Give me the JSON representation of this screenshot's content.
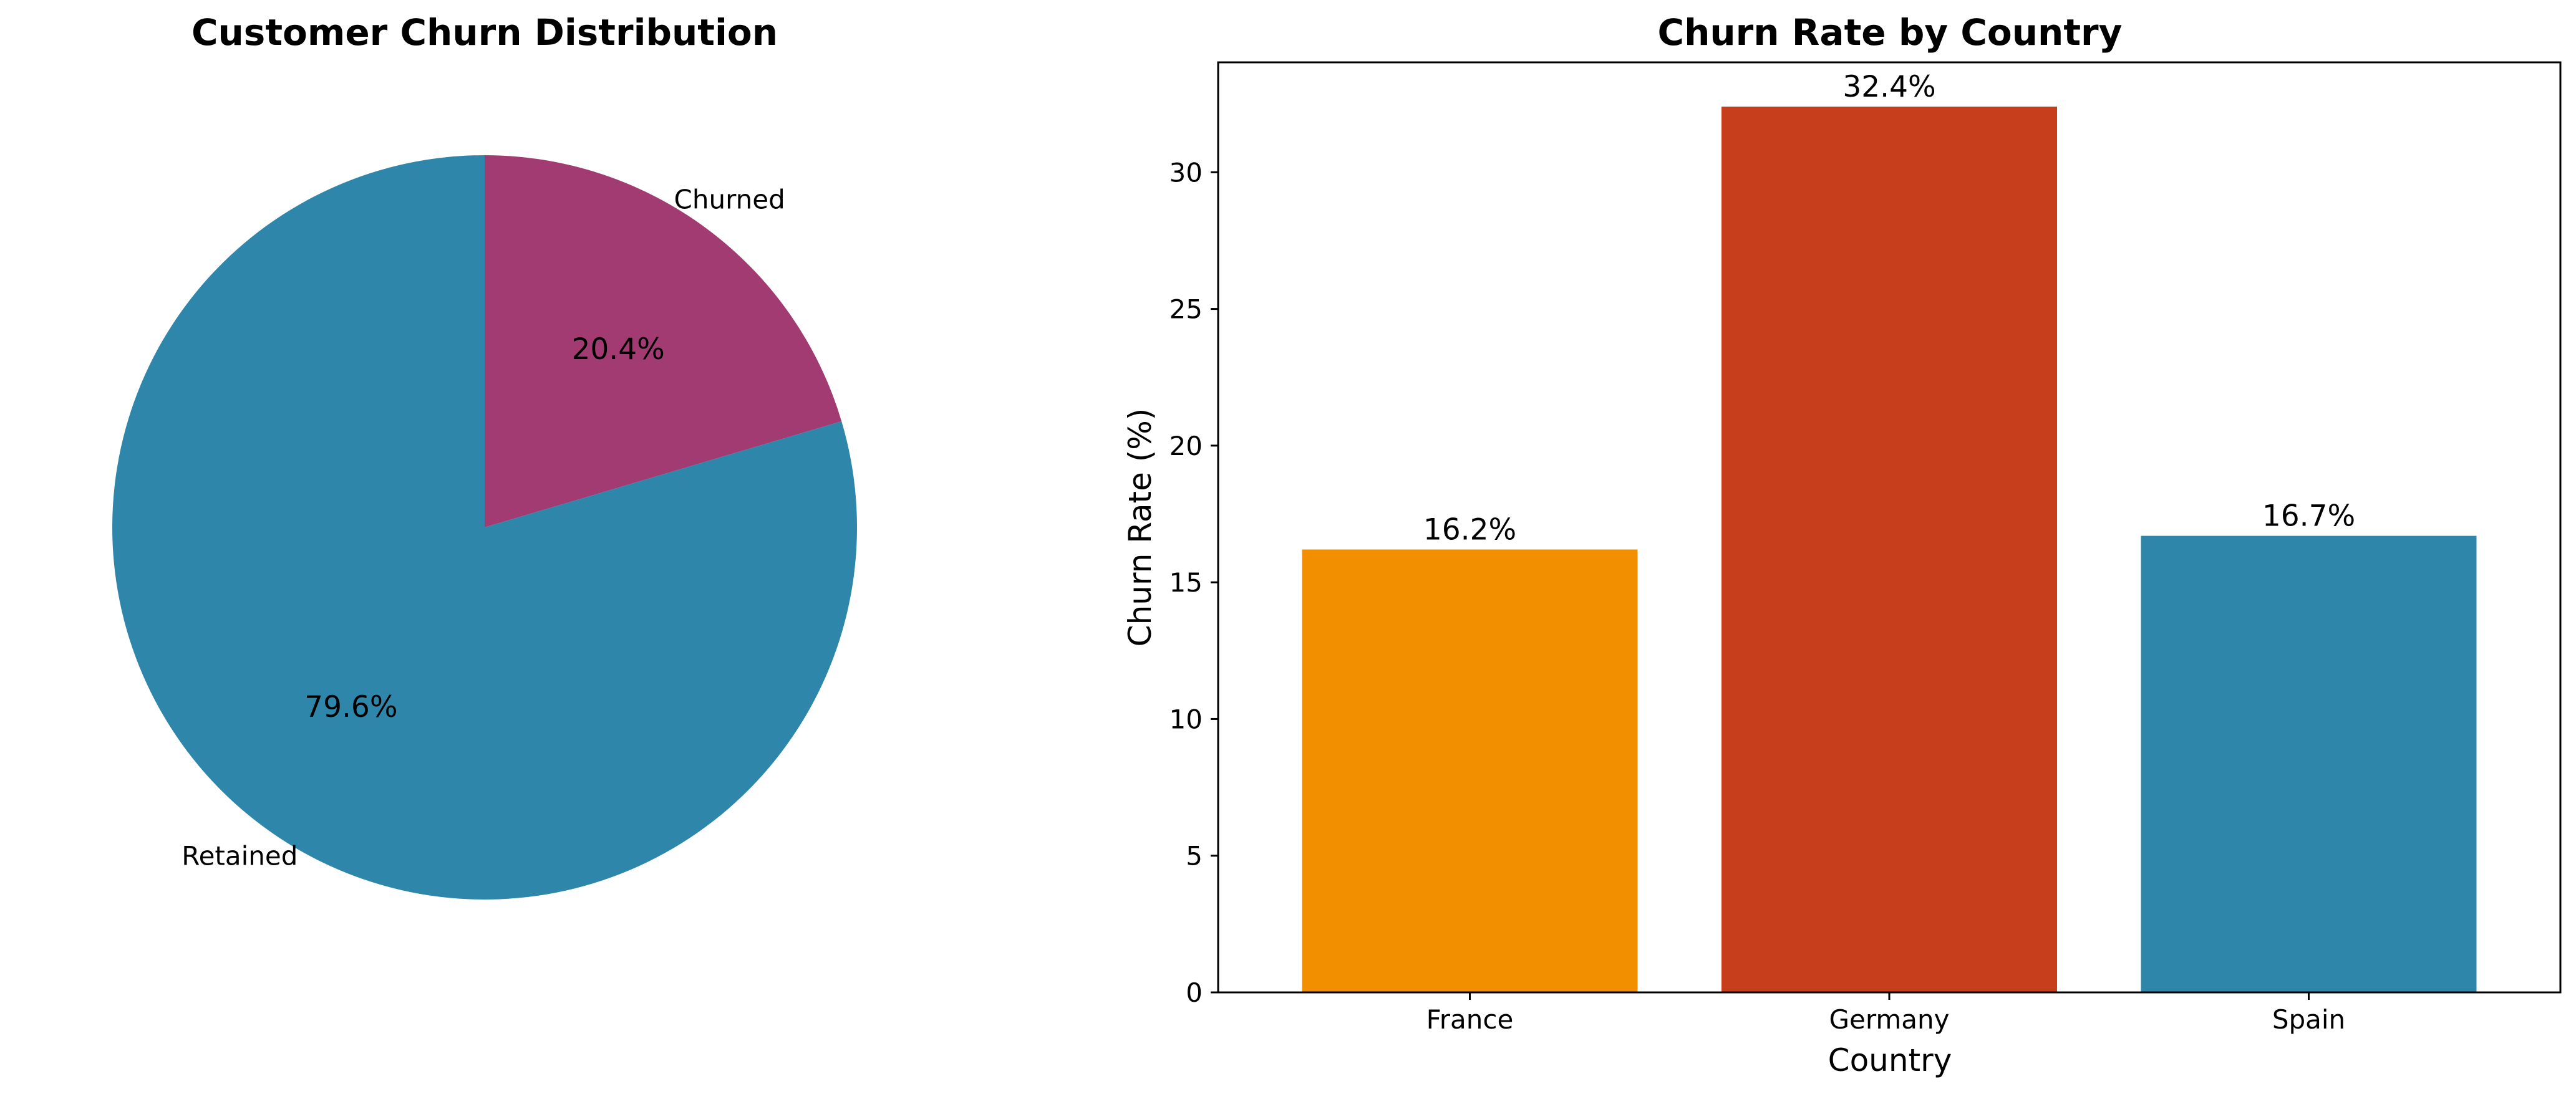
{
  "chart_data": [
    {
      "type": "pie",
      "title": "Customer Churn Distribution",
      "labels": [
        "Retained",
        "Churned"
      ],
      "values": [
        79.6,
        20.4
      ],
      "value_labels": [
        "79.6%",
        "20.4%"
      ],
      "colors": [
        "#2e86ab",
        "#a23b72"
      ],
      "start_angle_deg": 90,
      "direction": "clockwise-from-top for Churned, remaining Retained"
    },
    {
      "type": "bar",
      "title": "Churn Rate by Country",
      "categories": [
        "France",
        "Germany",
        "Spain"
      ],
      "values": [
        16.2,
        32.4,
        16.7
      ],
      "value_labels": [
        "16.2%",
        "32.4%",
        "16.7%"
      ],
      "colors": [
        "#f18f01",
        "#c73e1d",
        "#2e86ab"
      ],
      "xlabel": "Country",
      "ylabel": "Churn Rate (%)",
      "ylim": [
        0,
        34.02
      ],
      "yticks": [
        0,
        5,
        10,
        15,
        20,
        25,
        30
      ],
      "grid": false
    }
  ]
}
